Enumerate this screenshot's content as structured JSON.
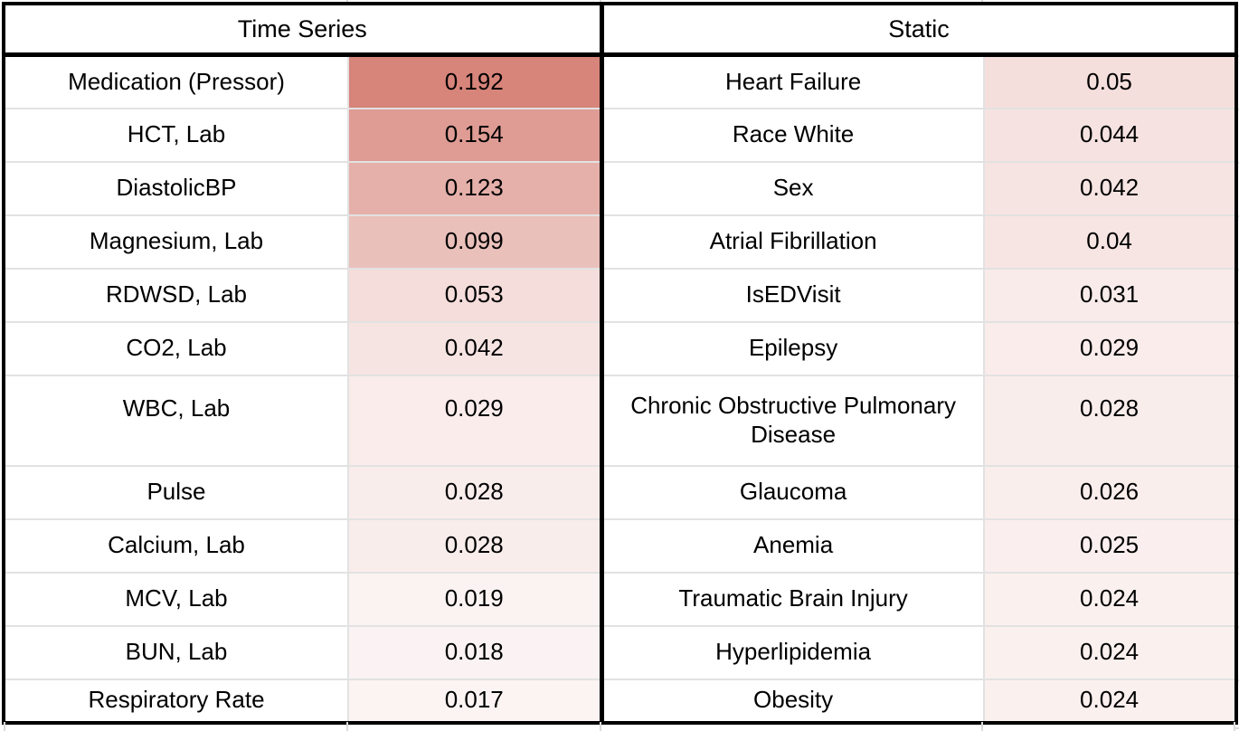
{
  "figure": {
    "description": "Feature importance heatmap table with two panels",
    "palette": {
      "heat_max_color": "#d7847a",
      "heat_min_color": "#ffffff",
      "gridline_color": "#e2e2e2",
      "border_color": "#000000"
    }
  },
  "chart_data": {
    "type": "table",
    "subtype": "heatmap-table",
    "color_scale": {
      "domain_min": 0,
      "domain_max": 0.192,
      "min_color": "#ffffff",
      "max_color": "#d7847a"
    },
    "tables": [
      {
        "title": "Time Series",
        "columns": [
          "feature",
          "importance"
        ],
        "rows": [
          {
            "label": "Medication (Pressor)",
            "value": "0.192"
          },
          {
            "label": "HCT, Lab",
            "value": "0.154"
          },
          {
            "label": "DiastolicBP",
            "value": "0.123"
          },
          {
            "label": "Magnesium, Lab",
            "value": "0.099"
          },
          {
            "label": "RDWSD, Lab",
            "value": "0.053"
          },
          {
            "label": "CO2, Lab",
            "value": "0.042"
          },
          {
            "label": "WBC, Lab",
            "value": "0.029"
          },
          {
            "label": "Pulse",
            "value": "0.028"
          },
          {
            "label": "Calcium, Lab",
            "value": "0.028"
          },
          {
            "label": "MCV, Lab",
            "value": "0.019"
          },
          {
            "label": "BUN, Lab",
            "value": "0.018"
          },
          {
            "label": "Respiratory Rate",
            "value": "0.017"
          }
        ]
      },
      {
        "title": "Static",
        "columns": [
          "feature",
          "importance"
        ],
        "rows": [
          {
            "label": "Heart Failure",
            "value": "0.05"
          },
          {
            "label": "Race White",
            "value": "0.044"
          },
          {
            "label": "Sex",
            "value": "0.042"
          },
          {
            "label": "Atrial Fibrillation",
            "value": "0.04"
          },
          {
            "label": "IsEDVisit",
            "value": "0.031"
          },
          {
            "label": "Epilepsy",
            "value": "0.029"
          },
          {
            "label": "Chronic Obstructive Pulmonary Disease",
            "value": "0.028"
          },
          {
            "label": "Glaucoma",
            "value": "0.026"
          },
          {
            "label": "Anemia",
            "value": "0.025"
          },
          {
            "label": "Traumatic Brain Injury",
            "value": "0.024"
          },
          {
            "label": "Hyperlipidemia",
            "value": "0.024"
          },
          {
            "label": "Obesity",
            "value": "0.024"
          }
        ]
      }
    ]
  }
}
